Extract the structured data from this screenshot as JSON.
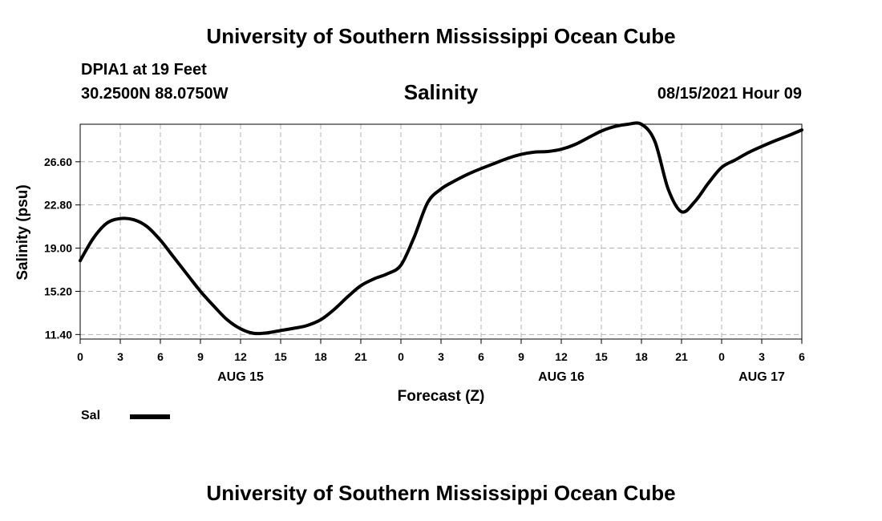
{
  "header": {
    "title": "University of Southern Mississippi Ocean Cube",
    "station": "DPIA1 at 19 Feet",
    "coordinates": "30.2500N  88.0750W",
    "variable": "Salinity",
    "valid_time": "08/15/2021 Hour 09"
  },
  "footer": {
    "title": "University of Southern Mississippi Ocean Cube"
  },
  "legend": {
    "label": "Sal"
  },
  "chart_data": {
    "type": "line",
    "title": "Salinity",
    "xlabel": "Forecast (Z)",
    "ylabel": "Salinity (psu)",
    "xlim": [
      0,
      54
    ],
    "ylim": [
      11.0,
      29.9
    ],
    "grid": true,
    "x_ticks": [
      {
        "hour": 0,
        "label": "0"
      },
      {
        "hour": 3,
        "label": "3"
      },
      {
        "hour": 6,
        "label": "6"
      },
      {
        "hour": 9,
        "label": "9"
      },
      {
        "hour": 12,
        "label": "12"
      },
      {
        "hour": 15,
        "label": "15"
      },
      {
        "hour": 18,
        "label": "18"
      },
      {
        "hour": 21,
        "label": "21"
      },
      {
        "hour": 24,
        "label": "0"
      },
      {
        "hour": 27,
        "label": "3"
      },
      {
        "hour": 30,
        "label": "6"
      },
      {
        "hour": 33,
        "label": "9"
      },
      {
        "hour": 36,
        "label": "12"
      },
      {
        "hour": 39,
        "label": "15"
      },
      {
        "hour": 42,
        "label": "18"
      },
      {
        "hour": 45,
        "label": "21"
      },
      {
        "hour": 48,
        "label": "0"
      },
      {
        "hour": 51,
        "label": "3"
      },
      {
        "hour": 54,
        "label": "6"
      }
    ],
    "date_labels": [
      {
        "hour": 12,
        "label": "AUG 15"
      },
      {
        "hour": 36,
        "label": "AUG 16"
      },
      {
        "hour": 51,
        "label": "AUG 17"
      }
    ],
    "y_ticks": [
      {
        "value": 11.4,
        "label": "11.40"
      },
      {
        "value": 15.2,
        "label": "15.20"
      },
      {
        "value": 19.0,
        "label": "19.00"
      },
      {
        "value": 22.8,
        "label": "22.80"
      },
      {
        "value": 26.6,
        "label": "26.60"
      }
    ],
    "series": [
      {
        "name": "Sal",
        "color": "#000000",
        "x": [
          0,
          1,
          2,
          3,
          4,
          5,
          6,
          7,
          8,
          9,
          10,
          11,
          12,
          13,
          14,
          15,
          16,
          17,
          18,
          19,
          20,
          21,
          22,
          23,
          24,
          25,
          26,
          27,
          28,
          29,
          30,
          31,
          32,
          33,
          34,
          35,
          36,
          37,
          38,
          39,
          40,
          41,
          42,
          43,
          44,
          45,
          46,
          47,
          48,
          49,
          50,
          51,
          52,
          53,
          54
        ],
        "y": [
          17.9,
          19.9,
          21.2,
          21.6,
          21.5,
          20.9,
          19.7,
          18.2,
          16.7,
          15.2,
          13.9,
          12.7,
          11.9,
          11.5,
          11.55,
          11.75,
          11.95,
          12.2,
          12.7,
          13.6,
          14.7,
          15.7,
          16.3,
          16.75,
          17.5,
          20.0,
          23.0,
          24.2,
          24.9,
          25.5,
          26.0,
          26.45,
          26.9,
          27.25,
          27.45,
          27.5,
          27.7,
          28.1,
          28.7,
          29.3,
          29.7,
          29.9,
          29.9,
          28.4,
          24.2,
          22.2,
          23.1,
          24.7,
          26.1,
          26.75,
          27.4,
          27.95,
          28.45,
          28.9,
          29.4
        ]
      }
    ]
  }
}
